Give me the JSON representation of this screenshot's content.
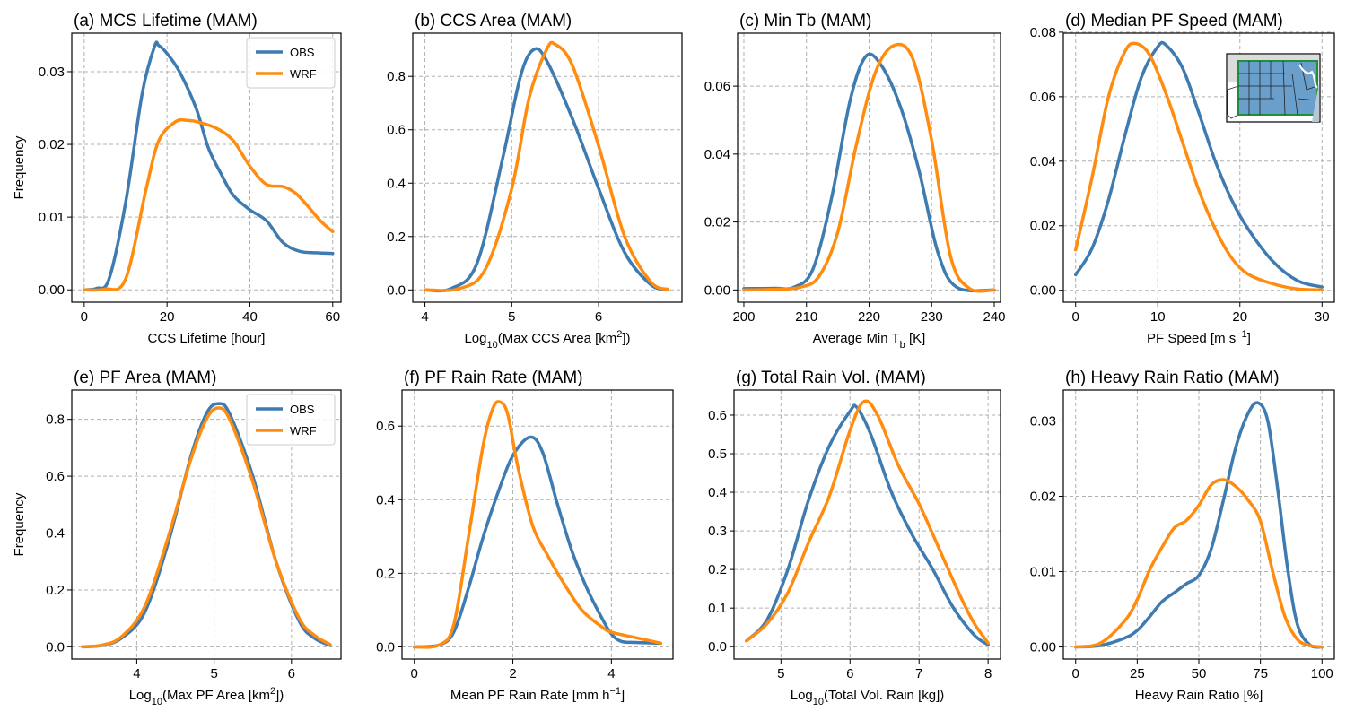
{
  "colors": {
    "OBS": "#3e7bb0",
    "WRF": "#ff8c0e"
  },
  "chart_data": [
    {
      "type": "line",
      "title": "(a) MCS Lifetime (MAM)",
      "xlabel": "CCS Lifetime [hour]",
      "ylabel": "Frequency",
      "xlim": [
        -3,
        62
      ],
      "ylim": [
        -0.0017,
        0.0353
      ],
      "xticks": [
        0,
        20,
        40,
        60
      ],
      "xticklabels": [
        "0",
        "20",
        "40",
        "60"
      ],
      "yticks": [
        0,
        0.01,
        0.02,
        0.03
      ],
      "yticklabels": [
        "0.00",
        "0.01",
        "0.02",
        "0.03"
      ],
      "legend": "top-right",
      "series": [
        {
          "name": "OBS",
          "x": [
            0,
            3,
            6,
            10,
            14,
            17,
            18,
            20,
            23,
            27,
            30,
            33,
            36,
            40,
            44,
            48,
            52,
            56,
            60
          ],
          "y": [
            0,
            0.0002,
            0.0015,
            0.012,
            0.027,
            0.0335,
            0.0336,
            0.0325,
            0.03,
            0.025,
            0.0195,
            0.016,
            0.013,
            0.011,
            0.0095,
            0.0065,
            0.0053,
            0.0051,
            0.005
          ]
        },
        {
          "name": "WRF",
          "x": [
            0,
            5,
            10,
            15,
            18,
            22,
            25,
            28,
            32,
            36,
            40,
            44,
            48,
            51,
            54,
            57,
            60
          ],
          "y": [
            0,
            0.0001,
            0.0015,
            0.014,
            0.0205,
            0.0231,
            0.0233,
            0.023,
            0.0222,
            0.0205,
            0.017,
            0.0145,
            0.0142,
            0.0133,
            0.0115,
            0.0095,
            0.008
          ]
        }
      ]
    },
    {
      "type": "line",
      "title": "(b) CCS Area (MAM)",
      "xlabel": "Log10(Max CCS Area [km2])",
      "xlim": [
        3.86,
        6.96
      ],
      "ylim": [
        -0.046,
        0.962
      ],
      "xticks": [
        4,
        5,
        6
      ],
      "xticklabels": [
        "4",
        "5",
        "6"
      ],
      "yticks": [
        0,
        0.2,
        0.4,
        0.6,
        0.8
      ],
      "yticklabels": [
        "0.0",
        "0.2",
        "0.4",
        "0.6",
        "0.8"
      ],
      "series": [
        {
          "name": "OBS",
          "x": [
            4,
            4.3,
            4.6,
            4.9,
            5.1,
            5.25,
            5.4,
            5.7,
            6.0,
            6.3,
            6.6,
            6.8
          ],
          "y": [
            0,
            0.005,
            0.1,
            0.5,
            0.8,
            0.9,
            0.86,
            0.64,
            0.38,
            0.14,
            0.02,
            0.002
          ]
        },
        {
          "name": "WRF",
          "x": [
            4,
            4.4,
            4.7,
            5.0,
            5.2,
            5.4,
            5.5,
            5.7,
            6.0,
            6.3,
            6.6,
            6.8
          ],
          "y": [
            0,
            0.005,
            0.08,
            0.38,
            0.72,
            0.9,
            0.92,
            0.84,
            0.54,
            0.2,
            0.03,
            0.002
          ]
        }
      ]
    },
    {
      "type": "line",
      "title": "(c) Min Tb (MAM)",
      "xlabel": "Average Min Tb [K]",
      "xlim": [
        199,
        241
      ],
      "ylim": [
        -0.0036,
        0.0756
      ],
      "xticks": [
        200,
        210,
        220,
        230,
        240
      ],
      "xticklabels": [
        "200",
        "210",
        "220",
        "230",
        "240"
      ],
      "yticks": [
        0,
        0.02,
        0.04,
        0.06
      ],
      "yticklabels": [
        "0.00",
        "0.02",
        "0.04",
        "0.06"
      ],
      "series": [
        {
          "name": "OBS",
          "x": [
            200,
            205,
            208,
            211,
            214,
            217,
            219.5,
            222,
            225,
            228,
            231,
            234,
            240
          ],
          "y": [
            0.0004,
            0.0005,
            0.0008,
            0.006,
            0.027,
            0.056,
            0.0688,
            0.066,
            0.054,
            0.035,
            0.011,
            0.0008,
            0
          ]
        },
        {
          "name": "WRF",
          "x": [
            200,
            205,
            209,
            212,
            215,
            218,
            221,
            224,
            227,
            230,
            233,
            236,
            240
          ],
          "y": [
            0,
            0.0002,
            0.0008,
            0.004,
            0.017,
            0.043,
            0.064,
            0.072,
            0.068,
            0.044,
            0.01,
            0.0005,
            0
          ]
        }
      ]
    },
    {
      "type": "line",
      "title": "(d) Median PF Speed (MAM)",
      "xlabel": "PF Speed [m s-1]",
      "xlim": [
        -1.5,
        31.5
      ],
      "ylim": [
        -0.0037,
        0.0797
      ],
      "xticks": [
        0,
        10,
        20,
        30
      ],
      "xticklabels": [
        "0",
        "10",
        "20",
        "30"
      ],
      "yticks": [
        0,
        0.02,
        0.04,
        0.06,
        0.08
      ],
      "yticklabels": [
        "0.00",
        "0.02",
        "0.04",
        "0.06",
        "0.08"
      ],
      "series": [
        {
          "name": "OBS",
          "x": [
            0,
            2,
            4,
            6,
            8,
            10,
            11,
            13,
            15,
            17,
            19,
            21,
            24,
            27,
            30
          ],
          "y": [
            0.0048,
            0.013,
            0.028,
            0.048,
            0.066,
            0.0755,
            0.076,
            0.069,
            0.055,
            0.04,
            0.028,
            0.019,
            0.009,
            0.003,
            0.001
          ]
        },
        {
          "name": "WRF",
          "x": [
            0,
            2,
            4,
            6,
            7.3,
            9,
            11,
            13,
            15,
            17,
            19,
            21,
            24,
            27,
            30
          ],
          "y": [
            0.0125,
            0.035,
            0.06,
            0.074,
            0.0765,
            0.073,
            0.061,
            0.046,
            0.031,
            0.019,
            0.01,
            0.005,
            0.002,
            0.0004,
            0.0001
          ]
        }
      ]
    },
    {
      "type": "line",
      "title": "(e) PF Area (MAM)",
      "xlabel": "Log10(Max PF Area [km2])",
      "ylabel": "Frequency",
      "xlim": [
        3.16,
        6.64
      ],
      "ylim": [
        -0.043,
        0.903
      ],
      "xticks": [
        4,
        5,
        6
      ],
      "xticklabels": [
        "4",
        "5",
        "6"
      ],
      "yticks": [
        0,
        0.2,
        0.4,
        0.6,
        0.8
      ],
      "yticklabels": [
        "0.0",
        "0.2",
        "0.4",
        "0.6",
        "0.8"
      ],
      "legend": "top-right",
      "series": [
        {
          "name": "OBS",
          "x": [
            3.3,
            3.55,
            3.8,
            4.1,
            4.4,
            4.7,
            4.9,
            5.05,
            5.2,
            5.5,
            5.8,
            6.1,
            6.3,
            6.5
          ],
          "y": [
            0,
            0.005,
            0.03,
            0.12,
            0.36,
            0.67,
            0.82,
            0.855,
            0.82,
            0.6,
            0.3,
            0.09,
            0.03,
            0.005
          ]
        },
        {
          "name": "WRF",
          "x": [
            3.3,
            3.55,
            3.8,
            4.1,
            4.4,
            4.7,
            4.9,
            5.05,
            5.2,
            5.5,
            5.8,
            6.1,
            6.3,
            6.5
          ],
          "y": [
            0,
            0.006,
            0.035,
            0.14,
            0.38,
            0.66,
            0.8,
            0.84,
            0.8,
            0.58,
            0.3,
            0.1,
            0.04,
            0.008
          ]
        }
      ]
    },
    {
      "type": "line",
      "title": "(f) PF Rain Rate (MAM)",
      "xlabel": "Mean PF Rain Rate [mm h-1]",
      "xlim": [
        -0.25,
        5.25
      ],
      "ylim": [
        -0.033,
        0.698
      ],
      "xticks": [
        0,
        2,
        4
      ],
      "xticklabels": [
        "0",
        "2",
        "4"
      ],
      "yticks": [
        0,
        0.2,
        0.4,
        0.6
      ],
      "yticklabels": [
        "0.0",
        "0.2",
        "0.4",
        "0.6"
      ],
      "series": [
        {
          "name": "OBS",
          "x": [
            0,
            0.5,
            0.8,
            1.1,
            1.4,
            1.7,
            2.0,
            2.35,
            2.6,
            2.9,
            3.2,
            3.5,
            3.8,
            4.0,
            4.2,
            4.5,
            5.0
          ],
          "y": [
            0,
            0.005,
            0.04,
            0.16,
            0.3,
            0.42,
            0.52,
            0.57,
            0.53,
            0.39,
            0.26,
            0.16,
            0.08,
            0.035,
            0.015,
            0.012,
            0.01
          ]
        },
        {
          "name": "WRF",
          "x": [
            0,
            0.5,
            0.8,
            1.1,
            1.4,
            1.6,
            1.75,
            1.9,
            2.1,
            2.4,
            2.7,
            3.0,
            3.4,
            3.8,
            4.0,
            4.5,
            5.0
          ],
          "y": [
            0,
            0.005,
            0.06,
            0.3,
            0.55,
            0.65,
            0.665,
            0.63,
            0.49,
            0.33,
            0.25,
            0.18,
            0.1,
            0.055,
            0.04,
            0.025,
            0.01
          ]
        }
      ]
    },
    {
      "type": "line",
      "title": "(g) Total Rain Vol. (MAM)",
      "xlabel": "Log10(Total Vol. Rain [kg])",
      "xlim": [
        4.32,
        8.18
      ],
      "ylim": [
        -0.032,
        0.665
      ],
      "xticks": [
        5,
        6,
        7,
        8
      ],
      "xticklabels": [
        "5",
        "6",
        "7",
        "8"
      ],
      "yticks": [
        0,
        0.1,
        0.2,
        0.3,
        0.4,
        0.5,
        0.6
      ],
      "yticklabels": [
        "0.0",
        "0.1",
        "0.2",
        "0.3",
        "0.4",
        "0.5",
        "0.6"
      ],
      "series": [
        {
          "name": "OBS",
          "x": [
            4.5,
            4.8,
            5.1,
            5.4,
            5.7,
            6.0,
            6.1,
            6.3,
            6.6,
            6.9,
            7.2,
            7.5,
            7.8,
            8.0
          ],
          "y": [
            0.015,
            0.07,
            0.2,
            0.38,
            0.52,
            0.61,
            0.62,
            0.55,
            0.4,
            0.29,
            0.2,
            0.1,
            0.03,
            0.005
          ]
        },
        {
          "name": "WRF",
          "x": [
            4.5,
            4.8,
            5.1,
            5.4,
            5.7,
            6.0,
            6.2,
            6.4,
            6.7,
            7.0,
            7.3,
            7.6,
            7.8,
            8.0
          ],
          "y": [
            0.015,
            0.06,
            0.14,
            0.27,
            0.39,
            0.56,
            0.635,
            0.6,
            0.47,
            0.37,
            0.25,
            0.13,
            0.06,
            0.01
          ]
        }
      ]
    },
    {
      "type": "line",
      "title": "(h) Heavy Rain Ratio (MAM)",
      "xlabel": "Heavy Rain Ratio [%]",
      "xlim": [
        -5,
        105
      ],
      "ylim": [
        -0.0016,
        0.0341
      ],
      "xticks": [
        0,
        25,
        50,
        75,
        100
      ],
      "xticklabels": [
        "0",
        "25",
        "50",
        "75",
        "100"
      ],
      "yticks": [
        0,
        0.01,
        0.02,
        0.03
      ],
      "yticklabels": [
        "0.00",
        "0.01",
        "0.02",
        "0.03"
      ],
      "series": [
        {
          "name": "OBS",
          "x": [
            0,
            10,
            20,
            25,
            30,
            35,
            40,
            45,
            50,
            55,
            60,
            65,
            70,
            74,
            78,
            82,
            86,
            90,
            95,
            100
          ],
          "y": [
            0,
            0.0002,
            0.0012,
            0.0022,
            0.004,
            0.006,
            0.0072,
            0.0084,
            0.0095,
            0.013,
            0.0195,
            0.0265,
            0.031,
            0.0324,
            0.03,
            0.021,
            0.0105,
            0.003,
            0.0003,
            0
          ]
        },
        {
          "name": "WRF",
          "x": [
            0,
            10,
            20,
            25,
            30,
            35,
            40,
            45,
            50,
            55,
            60,
            65,
            70,
            75,
            80,
            85,
            90,
            95,
            100
          ],
          "y": [
            0,
            0.0005,
            0.0035,
            0.0063,
            0.0102,
            0.0132,
            0.0158,
            0.0168,
            0.0188,
            0.0215,
            0.0222,
            0.0213,
            0.0195,
            0.0167,
            0.01,
            0.004,
            0.001,
            0.0002,
            0
          ]
        }
      ]
    }
  ]
}
